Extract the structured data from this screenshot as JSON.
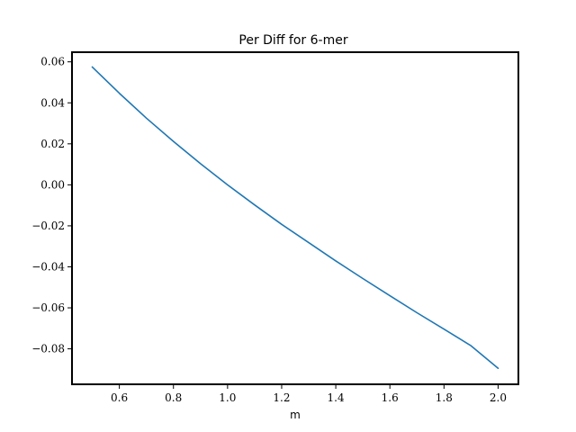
{
  "chart_data": {
    "type": "line",
    "title": "Per Diff for 6-mer",
    "xlabel": "m",
    "ylabel": "",
    "xlim": [
      0.425,
      2.075
    ],
    "ylim": [
      -0.0973,
      0.0647
    ],
    "grid": false,
    "legend": "none",
    "xticks": [
      0.6,
      0.8,
      1.0,
      1.2,
      1.4,
      1.6,
      1.8,
      2.0
    ],
    "xtick_labels": [
      "0.6",
      "0.8",
      "1.0",
      "1.2",
      "1.4",
      "1.6",
      "1.8",
      "2.0"
    ],
    "yticks": [
      0.06,
      0.04,
      0.02,
      0.0,
      -0.02,
      -0.04,
      -0.06,
      -0.08
    ],
    "ytick_labels": [
      "0.06",
      "0.04",
      "0.02",
      "0.00",
      "−0.02",
      "−0.04",
      "−0.06",
      "−0.08"
    ],
    "series": [
      {
        "color": "#1f77b4",
        "x": [
          0.5,
          0.6,
          0.7,
          0.8,
          0.9,
          1.0,
          1.1,
          1.2,
          1.3,
          1.4,
          1.5,
          1.6,
          1.7,
          1.8,
          1.9,
          2.0
        ],
        "y": [
          0.0575,
          0.0447,
          0.0325,
          0.0212,
          0.0103,
          0.0,
          -0.0098,
          -0.0193,
          -0.0282,
          -0.0371,
          -0.0457,
          -0.0541,
          -0.0624,
          -0.0704,
          -0.0785,
          -0.0895
        ]
      }
    ]
  }
}
